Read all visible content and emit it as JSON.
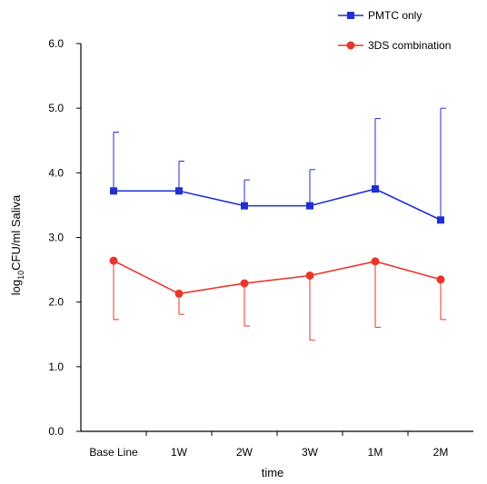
{
  "chart_data": {
    "type": "line",
    "xlabel": "time",
    "ylabel": "log10CFU/ml Saliva",
    "ylabel_parts": {
      "pre": "log",
      "sub": "10",
      "post": "CFU/ml Saliva"
    },
    "categories": [
      "Base Line",
      "1W",
      "2W",
      "3W",
      "1M",
      "2M"
    ],
    "ylim": [
      0.0,
      6.0
    ],
    "yticks": [
      "0.0",
      "1.0",
      "2.0",
      "3.0",
      "4.0",
      "5.0",
      "6.0"
    ],
    "grid": false,
    "legend_position": "top-right",
    "series": [
      {
        "name": "PMTC only",
        "color": "#1f2fd0",
        "marker": "square",
        "values": [
          3.72,
          3.72,
          3.49,
          3.49,
          3.75,
          3.27
        ],
        "error_upper": [
          4.63,
          4.18,
          3.89,
          4.05,
          4.84,
          5.0
        ],
        "error_direction": "up"
      },
      {
        "name": "3DS combination",
        "color": "#e8352c",
        "marker": "circle",
        "values": [
          2.64,
          2.13,
          2.29,
          2.41,
          2.63,
          2.35
        ],
        "error_lower": [
          1.73,
          1.81,
          1.63,
          1.41,
          1.61,
          1.73
        ],
        "error_direction": "down"
      }
    ]
  }
}
